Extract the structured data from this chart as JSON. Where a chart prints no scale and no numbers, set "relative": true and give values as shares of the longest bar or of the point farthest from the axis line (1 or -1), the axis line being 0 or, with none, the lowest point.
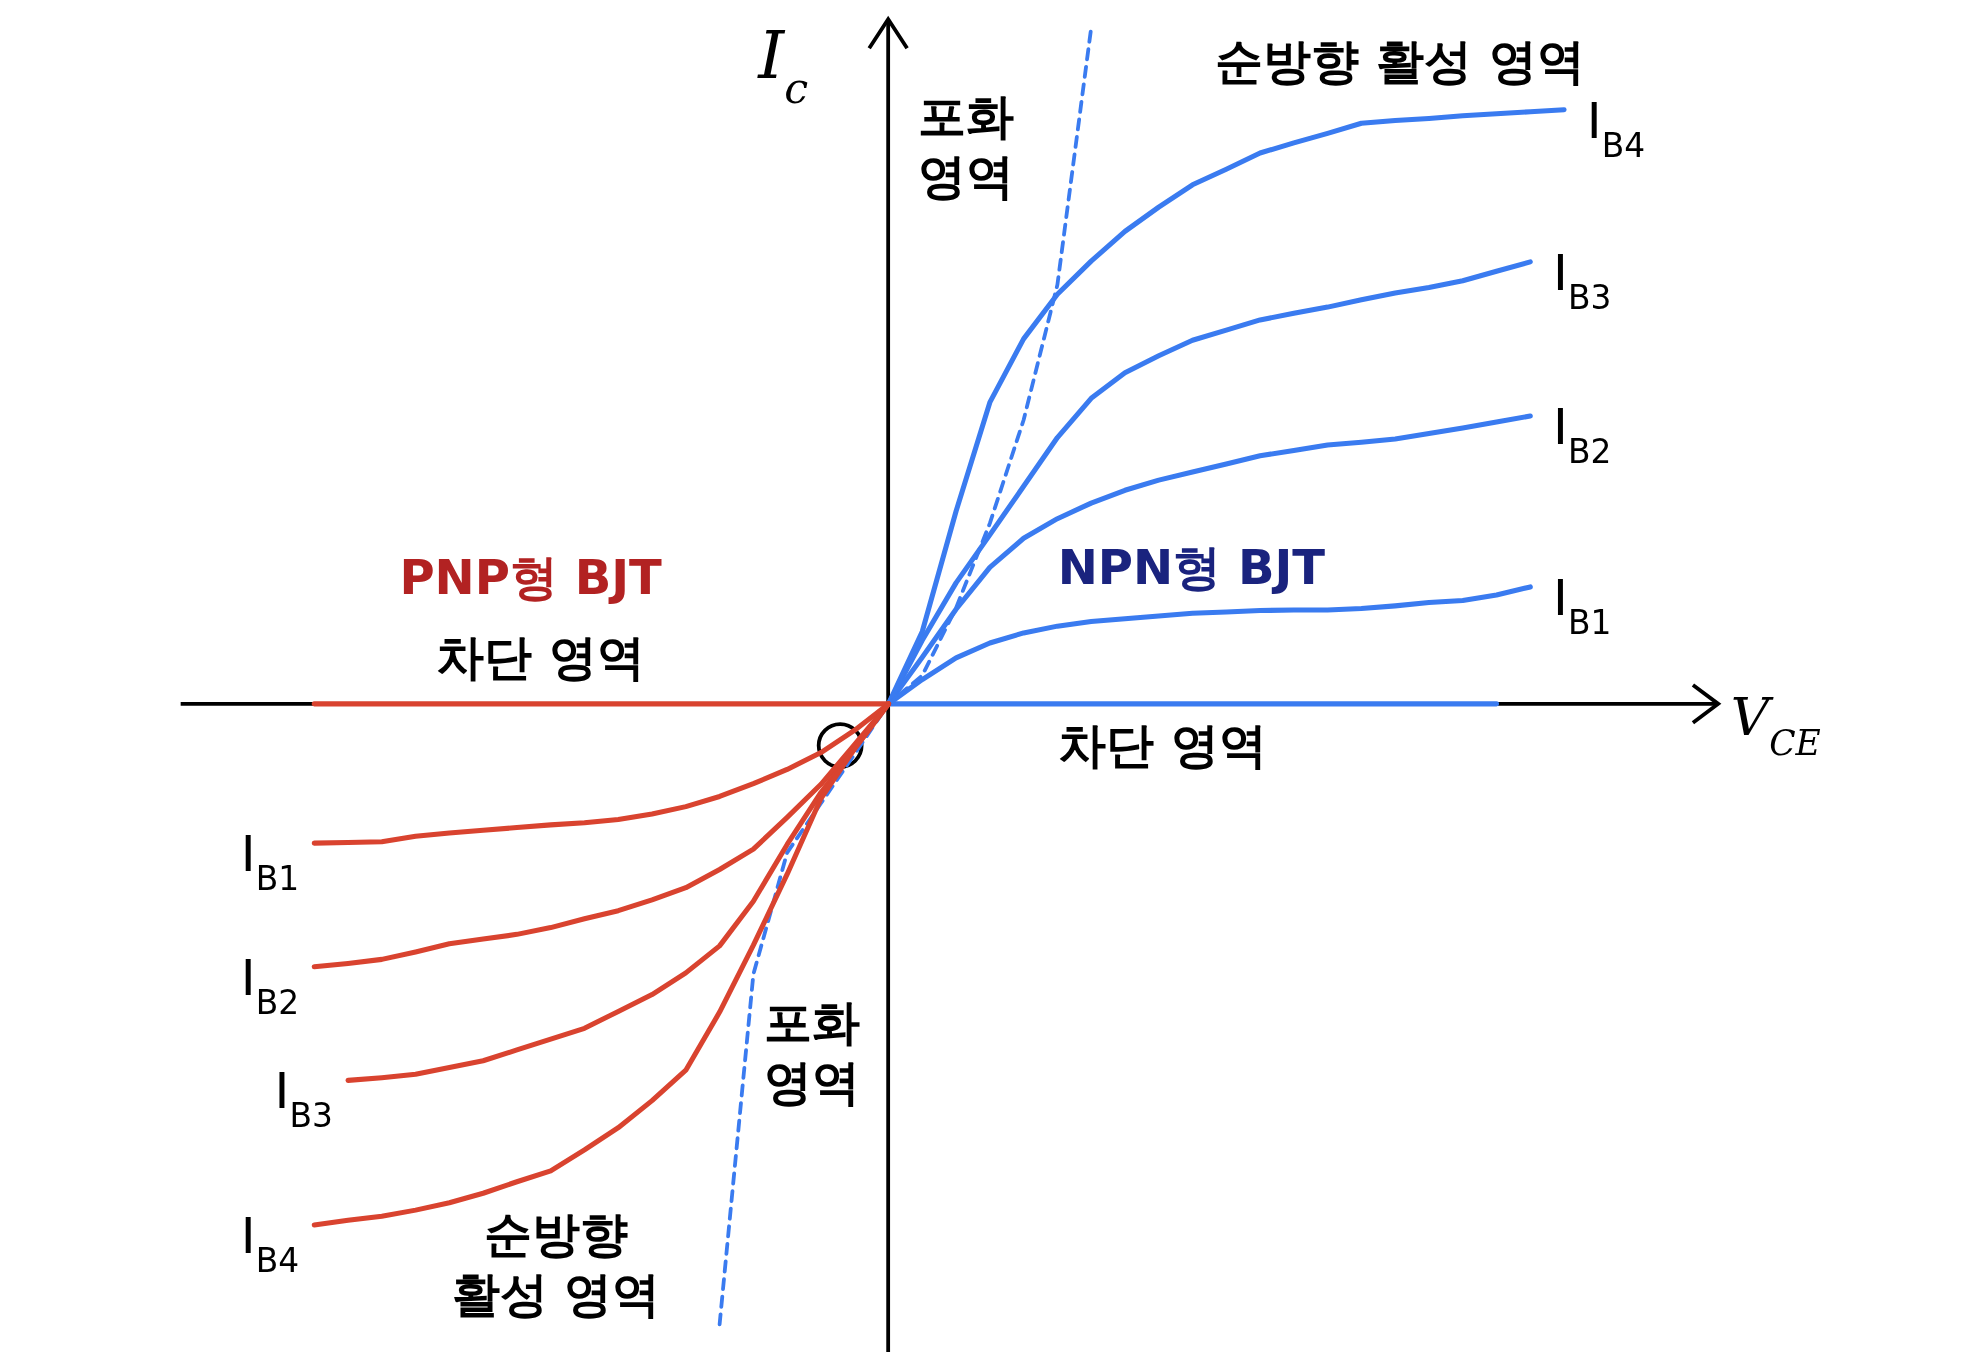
{
  "chart_data": {
    "type": "line",
    "relative": true,
    "xlabel": "V$_{CE}$",
    "ylabel": "I$_{c}$",
    "categories": [
      null,
      null,
      null,
      null,
      null,
      null,
      null,
      null,
      null,
      null,
      null,
      null,
      null,
      null,
      null,
      null,
      null,
      null,
      null,
      null,
      null,
      null,
      null,
      null,
      null,
      null,
      null,
      null,
      null,
      null,
      null,
      null,
      null,
      null,
      null,
      null,
      null,
      null,
      null
    ],
    "series": [
      {
        "color": "#3a7bf0",
        "values": [
          null,
          null,
          null,
          null,
          null,
          null,
          null,
          null,
          null,
          null,
          null,
          null,
          null,
          null,
          null,
          null,
          null,
          null,
          0,
          0,
          0,
          0,
          0,
          0,
          0,
          0,
          0,
          0,
          0,
          0,
          0,
          0,
          0,
          0,
          0,
          0,
          0,
          null,
          null
        ]
      },
      {
        "name": "I$_{B1}$",
        "color": "#3a7bf0",
        "values": [
          null,
          null,
          null,
          null,
          null,
          null,
          null,
          null,
          null,
          null,
          null,
          null,
          null,
          null,
          null,
          null,
          null,
          null,
          0,
          0.036,
          0.068,
          0.09,
          0.105,
          0.115,
          0.122,
          0.126,
          0.13,
          0.134,
          0.136,
          0.138,
          0.139,
          0.139,
          0.141,
          0.145,
          0.15,
          0.153,
          0.161,
          0.173,
          null
        ]
      },
      {
        "name": "I$_{B2}$",
        "color": "#3a7bf0",
        "values": [
          null,
          null,
          null,
          null,
          null,
          null,
          null,
          null,
          null,
          null,
          null,
          null,
          null,
          null,
          null,
          null,
          null,
          null,
          0,
          0.069,
          0.14,
          0.202,
          0.245,
          0.274,
          0.297,
          0.316,
          0.331,
          0.343,
          0.355,
          0.367,
          0.375,
          0.383,
          0.387,
          0.392,
          0.4,
          0.408,
          0.417,
          0.426,
          null
        ]
      },
      {
        "name": "I$_{B3}$",
        "color": "#3a7bf0",
        "values": [
          null,
          null,
          null,
          null,
          null,
          null,
          null,
          null,
          null,
          null,
          null,
          null,
          null,
          null,
          null,
          null,
          null,
          null,
          0,
          0.094,
          0.179,
          0.25,
          0.322,
          0.394,
          0.452,
          0.49,
          0.515,
          0.538,
          0.553,
          0.568,
          0.578,
          0.587,
          0.598,
          0.608,
          0.616,
          0.626,
          0.64,
          0.654,
          null
        ]
      },
      {
        "name": "I$_{B4}$",
        "color": "#3a7bf0",
        "values": [
          null,
          null,
          null,
          null,
          null,
          null,
          null,
          null,
          null,
          null,
          null,
          null,
          null,
          null,
          null,
          null,
          null,
          null,
          0,
          0.107,
          0.285,
          0.446,
          0.54,
          0.606,
          0.655,
          0.699,
          0.735,
          0.768,
          0.791,
          0.815,
          0.83,
          0.844,
          0.859,
          0.863,
          0.866,
          0.87,
          0.873,
          0.876,
          0.879
        ]
      },
      {
        "color": "#3a7bf0",
        "line_style": "dashed",
        "values": [
          null,
          null,
          null,
          null,
          null,
          null,
          null,
          null,
          null,
          null,
          null,
          null,
          null,
          -0.918,
          -0.4,
          -0.22,
          -0.147,
          -0.074,
          0,
          0.042,
          0.142,
          0.267,
          0.42,
          0.62,
          1.0,
          null,
          null,
          null,
          null,
          null,
          null,
          null,
          null,
          null,
          null,
          null,
          null,
          null,
          null
        ]
      },
      {
        "color": "#d9432f",
        "values": [
          null,
          0,
          0,
          0,
          0,
          0,
          0,
          0,
          0,
          0,
          0,
          0,
          0,
          0,
          0,
          0,
          0,
          0,
          0,
          null,
          null,
          null,
          null,
          null,
          null,
          null,
          null,
          null,
          null,
          null,
          null,
          null,
          null,
          null,
          null,
          null,
          null,
          null,
          null
        ]
      },
      {
        "name": "I$_{B1}$",
        "color": "#d9432f",
        "values": [
          null,
          -0.206,
          -0.205,
          -0.204,
          -0.196,
          -0.191,
          -0.187,
          -0.183,
          -0.179,
          -0.176,
          -0.171,
          -0.163,
          -0.152,
          -0.137,
          -0.118,
          -0.097,
          -0.072,
          -0.039,
          0,
          null,
          null,
          null,
          null,
          null,
          null,
          null,
          null,
          null,
          null,
          null,
          null,
          null,
          null,
          null,
          null,
          null,
          null,
          null,
          null
        ]
      },
      {
        "name": "I$_{B2}$",
        "color": "#d9432f",
        "values": [
          null,
          -0.389,
          -0.384,
          -0.378,
          -0.367,
          -0.355,
          -0.348,
          -0.341,
          -0.331,
          -0.318,
          -0.306,
          -0.29,
          -0.272,
          -0.245,
          -0.215,
          -0.168,
          -0.119,
          -0.06,
          0,
          null,
          null,
          null,
          null,
          null,
          null,
          null,
          null,
          null,
          null,
          null,
          null,
          null,
          null,
          null,
          null,
          null,
          null,
          null,
          null
        ]
      },
      {
        "name": "I$_{B3}$",
        "color": "#d9432f",
        "values": [
          null,
          null,
          -0.557,
          -0.553,
          -0.548,
          -0.538,
          -0.528,
          -0.512,
          -0.496,
          -0.48,
          -0.455,
          -0.43,
          -0.398,
          -0.358,
          -0.292,
          -0.208,
          -0.131,
          -0.066,
          0,
          null,
          null,
          null,
          null,
          null,
          null,
          null,
          null,
          null,
          null,
          null,
          null,
          null,
          null,
          null,
          null,
          null,
          null,
          null,
          null
        ]
      },
      {
        "name": "I$_{B4}$",
        "color": "#d9432f",
        "values": [
          null,
          -0.771,
          -0.764,
          -0.758,
          -0.749,
          -0.738,
          -0.724,
          -0.707,
          -0.691,
          -0.66,
          -0.627,
          -0.587,
          -0.542,
          -0.456,
          -0.357,
          -0.252,
          -0.14,
          -0.066,
          0,
          null,
          null,
          null,
          null,
          null,
          null,
          null,
          null,
          null,
          null,
          null,
          null,
          null,
          null,
          null,
          null,
          null,
          null,
          null,
          null
        ]
      }
    ],
    "annotations": [
      "포화\n영역",
      "순방향 활성 영역",
      "NPN형 BJT",
      "차단 영역",
      "PNP형 BJT",
      "차단 영역",
      "포화\n영역",
      "순방향\n활성 영역"
    ]
  }
}
